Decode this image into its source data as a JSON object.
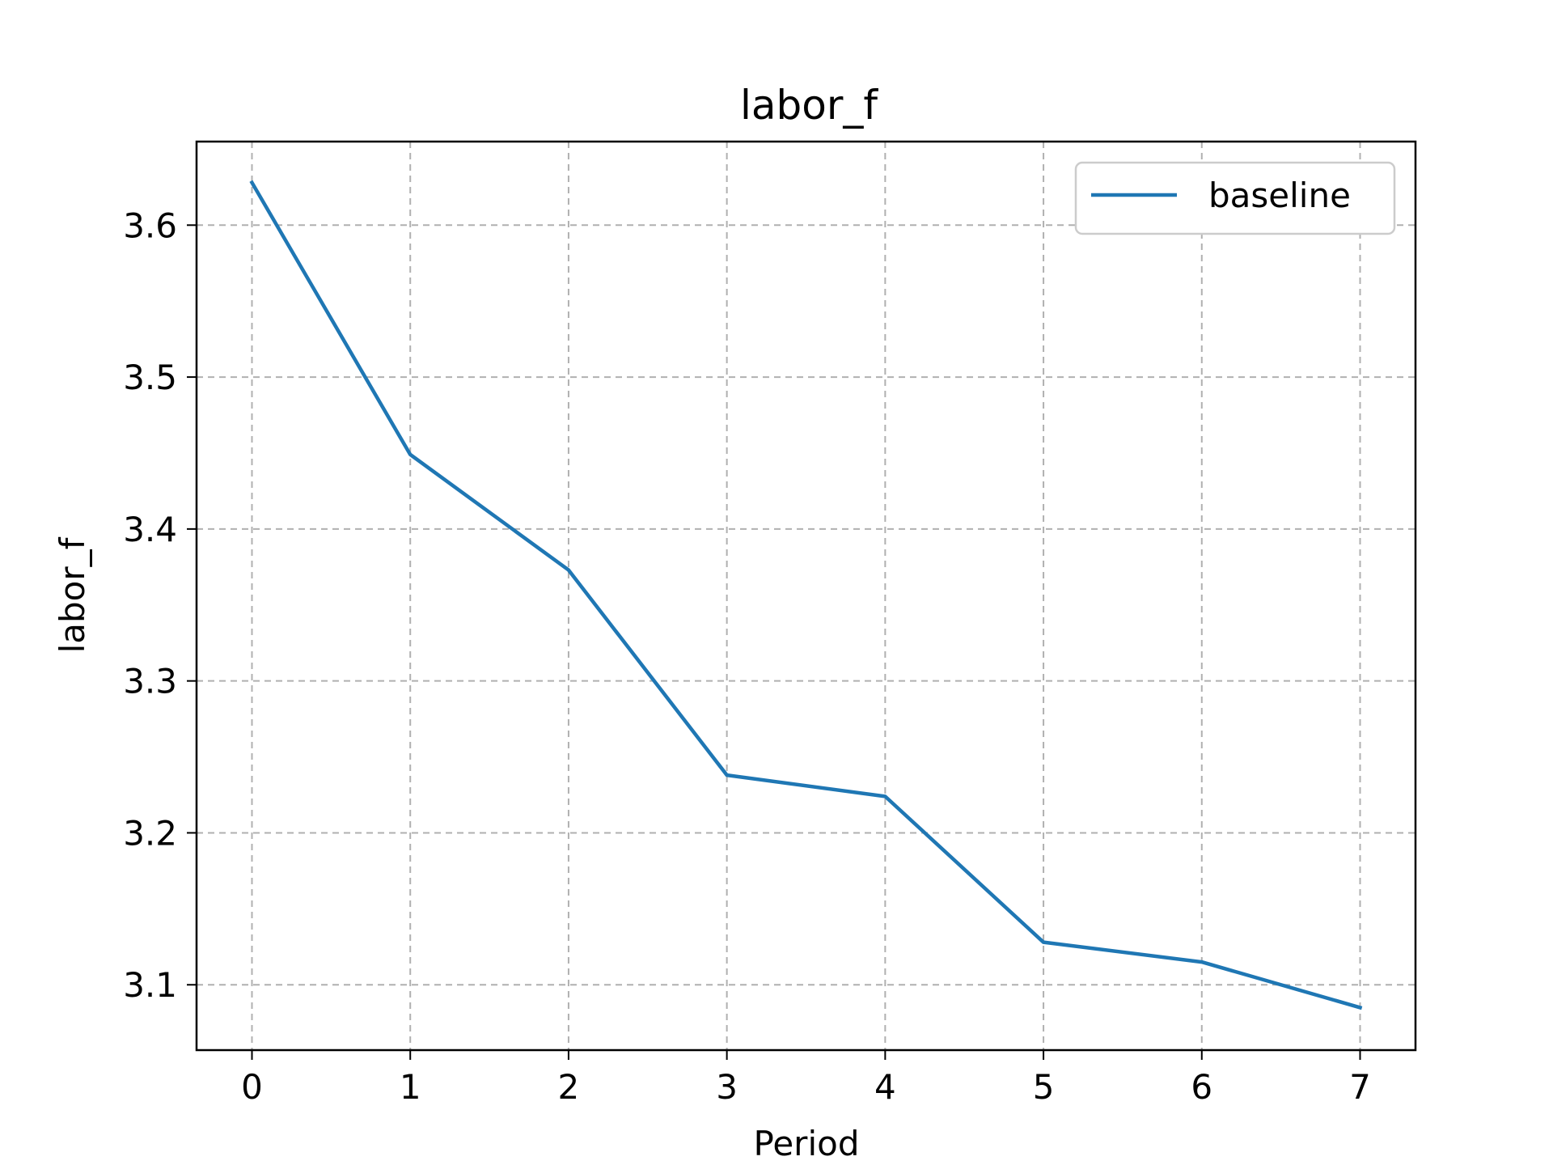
{
  "chart_data": {
    "type": "line",
    "title": "labor_f",
    "xlabel": "Period",
    "ylabel": "labor_f",
    "x": [
      0,
      1,
      2,
      3,
      4,
      5,
      6,
      7
    ],
    "xticks": [
      "0",
      "1",
      "2",
      "3",
      "4",
      "5",
      "6",
      "7"
    ],
    "yticks": [
      "3.1",
      "3.2",
      "3.3",
      "3.4",
      "3.5",
      "3.6"
    ],
    "xlim": [
      -0.35,
      7.35
    ],
    "ylim": [
      3.057,
      3.655
    ],
    "grid": true,
    "legend_position": "top-right",
    "series": [
      {
        "name": "baseline",
        "color": "#1f77b4",
        "values": [
          3.628,
          3.449,
          3.373,
          3.238,
          3.224,
          3.128,
          3.115,
          3.085
        ]
      }
    ]
  }
}
